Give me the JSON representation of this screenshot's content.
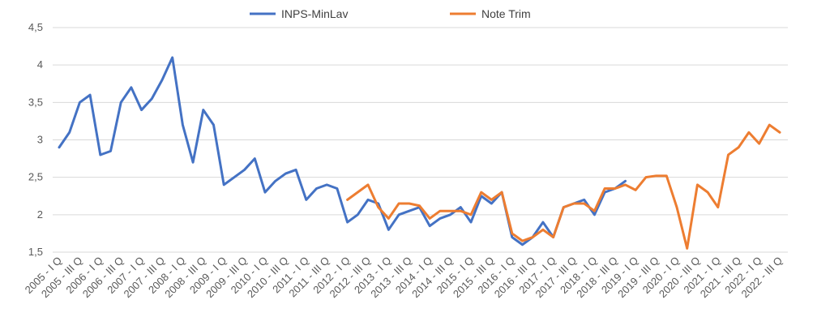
{
  "chart_data": {
    "type": "line",
    "title": "",
    "xlabel": "",
    "ylabel": "",
    "ylim": [
      1.5,
      4.5
    ],
    "yticks": [
      "1,5",
      "2",
      "2,5",
      "3",
      "3,5",
      "4",
      "4,5"
    ],
    "grid": "horizontal",
    "legend_position": "top-center",
    "x_tick_labels": [
      "2005 - I Q",
      "2005 - III Q",
      "2006 - I Q",
      "2006 - III Q",
      "2007 - I Q",
      "2007 - III Q",
      "2008 - I Q",
      "2008 - III Q",
      "2009 - I Q",
      "2009 - III Q",
      "2010 - I Q",
      "2010 - III Q",
      "2011 - I Q",
      "2011 - III Q",
      "2012 - I Q",
      "2012 - III Q",
      "2013 - I Q",
      "2013 - III Q",
      "2014 - I Q",
      "2014 - III Q",
      "2015 - I Q",
      "2015 - III Q",
      "2016 - I Q",
      "2016 - III Q",
      "2017 - I Q",
      "2017 - III Q",
      "2018 - I Q",
      "2018 - III Q",
      "2019 - I Q",
      "2019 - III Q",
      "2020 - I Q",
      "2020 - III Q",
      "2021 - I Q",
      "2021 - III Q",
      "2022 - I Q",
      "2022 - III Q"
    ],
    "series": [
      {
        "name": "INPS-MinLav",
        "color": "#4472c4",
        "values": [
          2.9,
          3.1,
          3.5,
          3.6,
          2.8,
          2.85,
          3.5,
          3.7,
          3.4,
          3.55,
          3.8,
          4.1,
          3.2,
          2.7,
          3.4,
          3.2,
          2.4,
          2.5,
          2.6,
          2.75,
          2.3,
          2.45,
          2.55,
          2.6,
          2.2,
          2.35,
          2.4,
          2.35,
          1.9,
          2.0,
          2.2,
          2.15,
          1.8,
          2.0,
          2.05,
          2.1,
          1.85,
          1.95,
          2.0,
          2.1,
          1.9,
          2.25,
          2.15,
          2.3,
          1.7,
          1.6,
          1.7,
          1.9,
          1.7,
          2.1,
          2.15,
          2.2,
          2.0,
          2.3,
          2.35,
          2.45
        ]
      },
      {
        "name": "Note Trim",
        "color": "#ed7d31",
        "values": [
          null,
          null,
          null,
          null,
          null,
          null,
          null,
          null,
          null,
          null,
          null,
          null,
          null,
          null,
          null,
          null,
          null,
          null,
          null,
          null,
          null,
          null,
          null,
          null,
          null,
          null,
          null,
          null,
          2.2,
          2.3,
          2.4,
          2.1,
          1.95,
          2.15,
          2.15,
          2.12,
          1.95,
          2.05,
          2.05,
          2.05,
          2.0,
          2.3,
          2.2,
          2.3,
          1.75,
          1.65,
          1.7,
          1.8,
          1.7,
          2.1,
          2.15,
          2.15,
          2.05,
          2.35,
          2.35,
          2.4,
          2.33,
          2.5,
          2.52,
          2.52,
          2.1,
          1.55,
          2.4,
          2.3,
          2.1,
          2.8,
          2.9,
          3.1,
          2.95,
          3.2,
          3.1
        ]
      }
    ]
  }
}
